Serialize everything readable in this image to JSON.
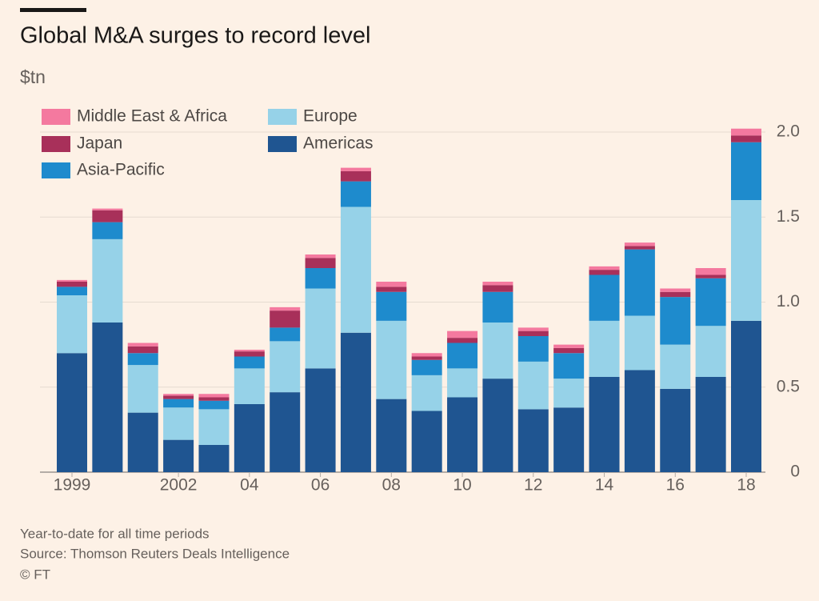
{
  "chart_data": {
    "type": "stacked-bar",
    "title": "Global M&A surges to record level",
    "subtitle": "$tn",
    "categories": [
      "1999",
      null,
      null,
      "2002",
      null,
      "04",
      null,
      "06",
      null,
      "08",
      null,
      "10",
      null,
      "12",
      null,
      "14",
      null,
      "16",
      null,
      "18"
    ],
    "series": [
      {
        "name": "Americas",
        "color": "#1f5591",
        "values": [
          0.7,
          0.88,
          0.35,
          0.19,
          0.16,
          0.4,
          0.47,
          0.61,
          0.82,
          0.43,
          0.36,
          0.44,
          0.55,
          0.37,
          0.38,
          0.56,
          0.6,
          0.49,
          0.56,
          0.89
        ]
      },
      {
        "name": "Europe",
        "color": "#96d2e8",
        "values": [
          0.34,
          0.49,
          0.28,
          0.19,
          0.21,
          0.21,
          0.3,
          0.47,
          0.74,
          0.46,
          0.21,
          0.17,
          0.33,
          0.28,
          0.17,
          0.33,
          0.32,
          0.26,
          0.3,
          0.71
        ]
      },
      {
        "name": "Asia-Pacific",
        "color": "#1e8bcd",
        "values": [
          0.05,
          0.1,
          0.07,
          0.05,
          0.05,
          0.07,
          0.08,
          0.12,
          0.15,
          0.17,
          0.09,
          0.15,
          0.18,
          0.15,
          0.15,
          0.27,
          0.39,
          0.28,
          0.28,
          0.34
        ]
      },
      {
        "name": "Japan",
        "color": "#a8305a",
        "values": [
          0.03,
          0.07,
          0.04,
          0.02,
          0.02,
          0.03,
          0.1,
          0.06,
          0.06,
          0.03,
          0.02,
          0.03,
          0.04,
          0.03,
          0.03,
          0.03,
          0.02,
          0.03,
          0.02,
          0.04
        ]
      },
      {
        "name": "Middle East & Africa",
        "color": "#f4799f",
        "values": [
          0.01,
          0.01,
          0.02,
          0.01,
          0.02,
          0.01,
          0.02,
          0.02,
          0.02,
          0.03,
          0.02,
          0.04,
          0.02,
          0.02,
          0.02,
          0.02,
          0.02,
          0.02,
          0.04,
          0.04
        ]
      }
    ],
    "ylim": [
      0,
      2.1
    ],
    "yticks": [
      0,
      0.5,
      {
        "value": 1,
        "label": "1.0"
      },
      1.5,
      {
        "value": 2,
        "label": "2.0"
      }
    ],
    "grid": true,
    "notes": [
      "Year-to-date for all time periods",
      "Source: Thomson Reuters Deals Intelligence",
      "© FT"
    ]
  }
}
